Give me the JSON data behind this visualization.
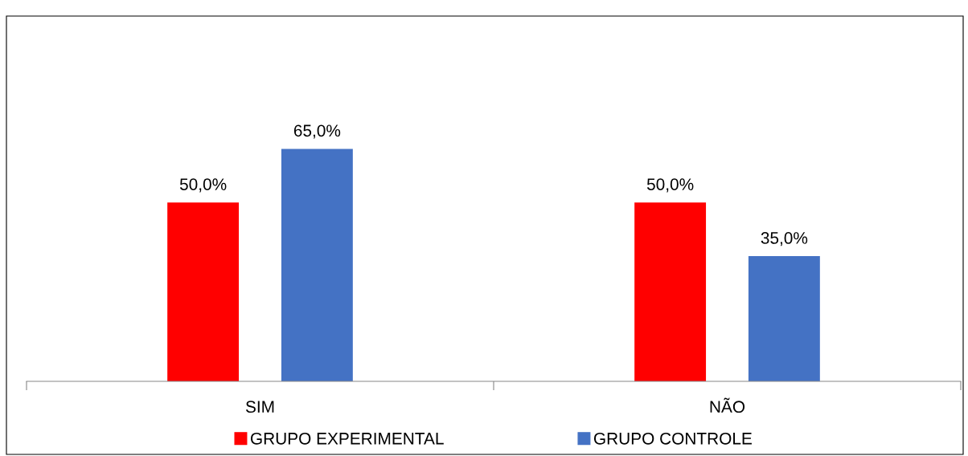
{
  "chart_data": {
    "type": "bar",
    "categories": [
      "SIM",
      "NÃO"
    ],
    "series": [
      {
        "name": "GRUPO EXPERIMENTAL",
        "color": "#ff0000",
        "values": [
          50,
          50
        ],
        "value_labels": [
          "50,0%",
          "50,0%"
        ]
      },
      {
        "name": "GRUPO CONTROLE",
        "color": "#4472c4",
        "values": [
          65,
          35
        ],
        "value_labels": [
          "65,0%",
          "35,0%"
        ]
      }
    ],
    "legend": "bottom",
    "grid": false
  }
}
